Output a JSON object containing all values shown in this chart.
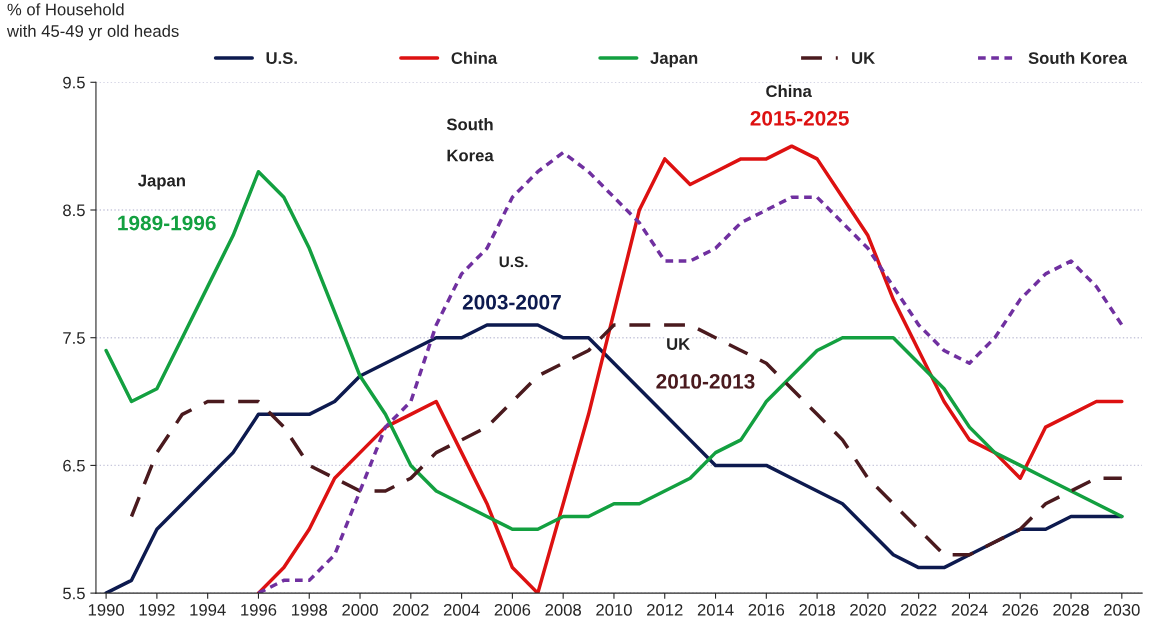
{
  "chart_data": {
    "type": "line",
    "ylabel": "% of Household\nwith 45-49 yr old heads",
    "x": [
      1990,
      1991,
      1992,
      1993,
      1994,
      1995,
      1996,
      1997,
      1998,
      1999,
      2000,
      2001,
      2002,
      2003,
      2004,
      2005,
      2006,
      2007,
      2008,
      2009,
      2010,
      2011,
      2012,
      2013,
      2014,
      2015,
      2016,
      2017,
      2018,
      2019,
      2020,
      2021,
      2022,
      2023,
      2024,
      2025,
      2026,
      2027,
      2028,
      2029,
      2030
    ],
    "series": [
      {
        "name": "U.S.",
        "color": "#0d1a4f",
        "line_style": "solid",
        "values": [
          5.5,
          5.6,
          6.0,
          6.2,
          6.4,
          6.6,
          6.9,
          6.9,
          6.9,
          7.0,
          7.2,
          7.3,
          7.4,
          7.5,
          7.5,
          7.6,
          7.6,
          7.6,
          7.5,
          7.5,
          7.3,
          7.1,
          6.9,
          6.7,
          6.5,
          6.5,
          6.5,
          6.4,
          6.3,
          6.2,
          6.0,
          5.8,
          5.7,
          5.7,
          5.8,
          5.9,
          6.0,
          6.0,
          6.1,
          6.1,
          6.1
        ]
      },
      {
        "name": "China",
        "color": "#dd1111",
        "line_style": "solid",
        "values": [
          null,
          null,
          null,
          null,
          null,
          null,
          5.5,
          5.7,
          6.0,
          6.4,
          6.6,
          6.8,
          6.9,
          7.0,
          6.6,
          6.2,
          5.7,
          5.5,
          6.2,
          6.9,
          7.7,
          8.5,
          8.9,
          8.7,
          8.8,
          8.9,
          8.9,
          9.0,
          8.9,
          8.6,
          8.3,
          7.8,
          7.4,
          7.0,
          6.7,
          6.6,
          6.4,
          6.8,
          6.9,
          7.0,
          7.0
        ]
      },
      {
        "name": "Japan",
        "color": "#13a040",
        "line_style": "solid",
        "values": [
          7.4,
          7.0,
          7.1,
          7.5,
          7.9,
          8.3,
          8.8,
          8.6,
          8.2,
          7.7,
          7.2,
          6.9,
          6.5,
          6.3,
          6.2,
          6.1,
          6.0,
          6.0,
          6.1,
          6.1,
          6.2,
          6.2,
          6.3,
          6.4,
          6.6,
          6.7,
          7.0,
          7.2,
          7.4,
          7.5,
          7.5,
          7.5,
          7.3,
          7.1,
          6.8,
          6.6,
          6.5,
          6.4,
          6.3,
          6.2,
          6.1
        ]
      },
      {
        "name": "UK",
        "color": "#4a1a1e",
        "line_style": "dashed",
        "values": [
          null,
          6.1,
          6.6,
          6.9,
          7.0,
          7.0,
          7.0,
          6.8,
          6.5,
          6.4,
          6.3,
          6.3,
          6.4,
          6.6,
          6.7,
          6.8,
          7.0,
          7.2,
          7.3,
          7.4,
          7.6,
          7.6,
          7.6,
          7.6,
          7.5,
          7.4,
          7.3,
          7.1,
          6.9,
          6.7,
          6.4,
          6.2,
          6.0,
          5.8,
          5.8,
          5.9,
          6.0,
          6.2,
          6.3,
          6.4,
          6.4
        ]
      },
      {
        "name": "South Korea",
        "color": "#7030a0",
        "line_style": "dotted",
        "values": [
          null,
          null,
          null,
          null,
          null,
          null,
          5.5,
          5.6,
          5.6,
          5.8,
          6.3,
          6.8,
          7.0,
          7.6,
          8.0,
          8.2,
          8.6,
          8.8,
          8.95,
          8.8,
          8.6,
          8.4,
          8.1,
          8.1,
          8.2,
          8.4,
          8.5,
          8.6,
          8.6,
          8.4,
          8.2,
          7.9,
          7.6,
          7.4,
          7.3,
          7.5,
          7.8,
          8.0,
          8.1,
          7.9,
          7.6
        ]
      }
    ],
    "xlim": [
      1989.6,
      2030.8
    ],
    "xticks": [
      1990,
      1992,
      1994,
      1996,
      1998,
      2000,
      2002,
      2004,
      2006,
      2008,
      2010,
      2012,
      2014,
      2016,
      2018,
      2020,
      2022,
      2024,
      2026,
      2028,
      2030
    ],
    "ylim": [
      5.5,
      9.5
    ],
    "yticks": [
      5.5,
      6.5,
      7.5,
      8.5,
      9.5
    ],
    "grid": "y",
    "legend": "top",
    "annotations": [
      "Japan",
      "1989-1996",
      "South\n\nKorea",
      "U.S.",
      "2003-2007",
      "UK",
      "2010-2013",
      "China",
      "2015-2025"
    ]
  }
}
